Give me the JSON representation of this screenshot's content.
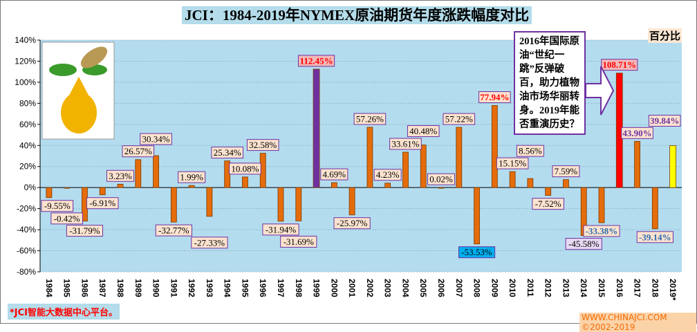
{
  "chart_data": {
    "type": "bar",
    "title": "JCI：1984-2019年NYMEX原油期货年度涨跌幅度对比",
    "ylabel": "百分比",
    "ylim": [
      -80,
      140
    ],
    "yticks": [
      "140%",
      "120%",
      "100%",
      "80%",
      "60%",
      "40%",
      "20%",
      "0%",
      "-20%",
      "-40%",
      "-60%",
      "-80%"
    ],
    "categories": [
      "1984",
      "1985",
      "1986",
      "1987",
      "1988",
      "1989",
      "1990",
      "1991",
      "1992",
      "1993",
      "1994",
      "1995",
      "1996",
      "1997",
      "1998",
      "1999",
      "2000",
      "2001",
      "2002",
      "2003",
      "2004",
      "2005",
      "2006",
      "2007",
      "2008",
      "2009",
      "2010",
      "2011",
      "2012",
      "2013",
      "2014",
      "2015",
      "2016",
      "2017",
      "2018",
      "2019*"
    ],
    "values": [
      -9.55,
      -0.42,
      -31.79,
      -6.91,
      3.23,
      26.57,
      30.34,
      -32.77,
      1.99,
      -27.33,
      25.34,
      10.08,
      32.58,
      -31.94,
      -31.69,
      112.45,
      4.69,
      -25.97,
      57.26,
      4.23,
      33.61,
      40.48,
      0.02,
      57.22,
      -53.53,
      77.94,
      15.15,
      8.56,
      -7.52,
      7.59,
      -45.58,
      -33.38,
      108.71,
      43.9,
      -39.14,
      39.84
    ],
    "data_labels": [
      "-9.55%",
      "-0.42%",
      "-31.79%",
      "-6.91%",
      "3.23%",
      "26.57%",
      "30.34%",
      "-32.77%",
      "1.99%",
      "-27.33%",
      "25.34%",
      "10.08%",
      "32.58%",
      "-31.94%",
      "-31.69%",
      "112.45%",
      "4.69%",
      "-25.97%",
      "57.26%",
      "4.23%",
      "33.61%",
      "40.48%",
      "0.02%",
      "57.22%",
      "-53.53%",
      "77.94%",
      "15.15%",
      "8.56%",
      "-7.52%",
      "7.59%",
      "-45.58%",
      "-33.38%",
      "108.71%",
      "43.90%",
      "-39.14%",
      "39.84%"
    ],
    "colors": {
      "default": "#e46c0a",
      "1999": "#7030a0",
      "2016": "#ff0000",
      "2019*": "#ffff00",
      "background": "#b4dcef"
    },
    "grid": true
  },
  "annotation": "2016年国际原油“世纪一跳”反弹破百，助力植物油市场华丽转身。2019年能否重演历史？",
  "footer_left": "*JCI智能大数据中心平台。",
  "footer_right": "WWW.CHINAJCI.COM ©2002-2019"
}
